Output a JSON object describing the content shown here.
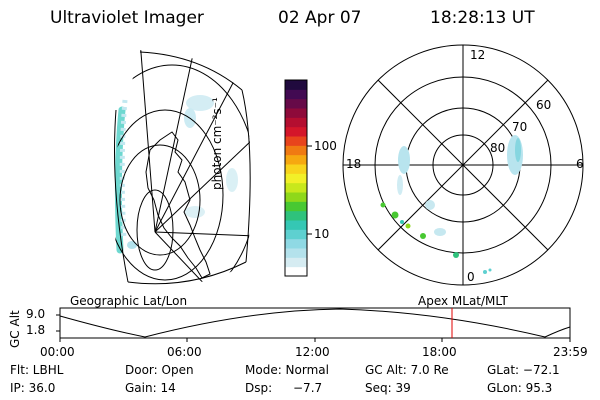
{
  "header": {
    "instrument": "Ultraviolet Imager",
    "date": "02 Apr 07",
    "time": "18:28:13 UT"
  },
  "colorbar": {
    "unit_label": "photon cm⁻²s⁻¹",
    "ticks": [
      "100",
      "10"
    ],
    "colors": [
      "#ffffff",
      "#d6ecf2",
      "#b4e2ec",
      "#8fd9e4",
      "#5ed0d0",
      "#35c7b4",
      "#2fc27c",
      "#48c832",
      "#8fd81a",
      "#c8e81c",
      "#f2f028",
      "#f8d41c",
      "#f6a810",
      "#f07a12",
      "#e8441c",
      "#d4162a",
      "#b40e30",
      "#8e0a3a",
      "#660a48",
      "#420a52",
      "#200a3e"
    ]
  },
  "geo_map": {
    "label": "Geographic Lat/Lon"
  },
  "polar_map": {
    "label": "Apex MLat/MLT",
    "mlt_labels": {
      "top": "12",
      "left": "18",
      "right": "6",
      "bottom": "0"
    },
    "lat_labels": [
      "60",
      "70",
      "80"
    ]
  },
  "altitude_plot": {
    "ylabel": "GC Alt",
    "yticks": [
      "9.0",
      "1.8"
    ],
    "xticks": [
      "00:00",
      "06:00",
      "12:00",
      "18:00",
      "23:59"
    ],
    "marker_color": "#e00000"
  },
  "info": {
    "filter": "Flt: LBHL",
    "door": "Door: Open",
    "mode": "Mode: Normal",
    "gc_alt": "GC Alt: 7.0 Re",
    "glat": "GLat: −72.1",
    "ip": "IP: 36.0",
    "gain": "Gain: 14",
    "dsp_label": "Dsp:",
    "dsp_value": "−7.7",
    "seq": "Seq: 39",
    "glon": "GLon:  95.3"
  }
}
